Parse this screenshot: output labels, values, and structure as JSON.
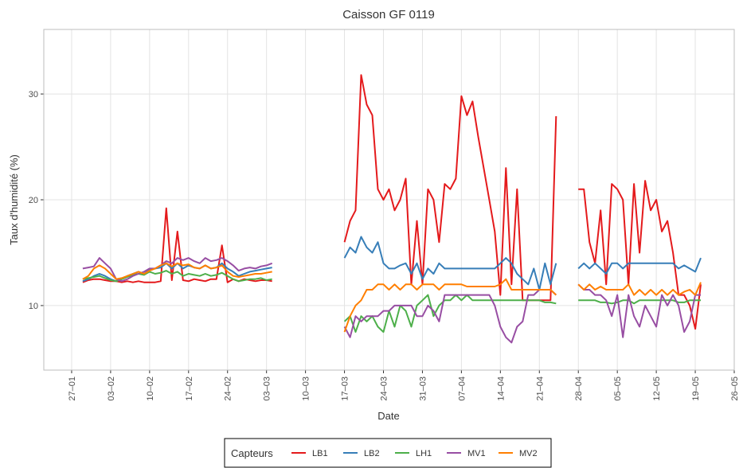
{
  "chart_data": {
    "type": "line",
    "title": "Caisson GF 0119",
    "x_label": "Date",
    "y_label": "Taux d'humidité (%)",
    "legend_title": "Capteurs",
    "legend": "bottom",
    "grid": true,
    "xlim": [
      "22–01",
      "26–05"
    ],
    "xticks": [
      "27–01",
      "03–02",
      "10–02",
      "17–02",
      "24–02",
      "03–03",
      "10–03",
      "17–03",
      "24–03",
      "31–03",
      "07–04",
      "14–04",
      "21–04",
      "28–04",
      "05–05",
      "12–05",
      "19–05",
      "26–05"
    ],
    "ylim": [
      3.9,
      36.1
    ],
    "yticks": [
      10,
      20,
      30
    ],
    "x": [
      "29–01",
      "30–01",
      "31–01",
      "01–02",
      "02–02",
      "03–02",
      "04–02",
      "05–02",
      "06–02",
      "07–02",
      "08–02",
      "09–02",
      "10–02",
      "11–02",
      "12–02",
      "13–02",
      "14–02",
      "15–02",
      "16–02",
      "17–02",
      "18–02",
      "19–02",
      "20–02",
      "21–02",
      "22–02",
      "23–02",
      "24–02",
      "25–02",
      "26–02",
      "27–02",
      "28–02",
      "01–03",
      "02–03",
      "03–03",
      "04–03",
      "05–03",
      "06–03",
      "07–03",
      "08–03",
      "09–03",
      "10–03",
      "11–03",
      "12–03",
      "13–03",
      "14–03",
      "15–03",
      "16–03",
      "17–03",
      "18–03",
      "19–03",
      "20–03",
      "21–03",
      "22–03",
      "23–03",
      "24–03",
      "25–03",
      "26–03",
      "27–03",
      "28–03",
      "29–03",
      "30–03",
      "31–03",
      "01–04",
      "02–04",
      "03–04",
      "04–04",
      "05–04",
      "06–04",
      "07–04",
      "08–04",
      "09–04",
      "10–04",
      "11–04",
      "12–04",
      "13–04",
      "14–04",
      "15–04",
      "16–04",
      "17–04",
      "18–04",
      "19–04",
      "20–04",
      "21–04",
      "22–04",
      "23–04",
      "24–04",
      "25–04",
      "26–04",
      "27–04",
      "28–04",
      "29–04",
      "30–04",
      "01–05",
      "02–05",
      "03–05",
      "04–05",
      "05–05",
      "06–05",
      "07–05",
      "08–05",
      "09–05",
      "10–05",
      "11–05",
      "12–05",
      "13–05",
      "14–05",
      "15–05",
      "16–05",
      "17–05",
      "18–05",
      "19–05",
      "20–05"
    ],
    "series": [
      {
        "name": "LB1",
        "color": "#e41a1c",
        "values": [
          12.2,
          12.4,
          12.5,
          12.5,
          12.4,
          12.3,
          12.3,
          12.2,
          12.3,
          12.2,
          12.3,
          12.2,
          12.2,
          12.2,
          12.3,
          19.2,
          12.4,
          17.0,
          12.4,
          12.3,
          12.5,
          12.4,
          12.3,
          12.5,
          12.5,
          15.7,
          12.2,
          12.5,
          12.3,
          12.5,
          12.4,
          12.3,
          12.4,
          12.4,
          12.3,
          null,
          null,
          null,
          null,
          null,
          null,
          null,
          null,
          null,
          null,
          null,
          null,
          16,
          18,
          19,
          31.8,
          29,
          28,
          21,
          20,
          21,
          19,
          20,
          22,
          12,
          18,
          12,
          21,
          20,
          16,
          21.5,
          21,
          22,
          29.8,
          28,
          29.3,
          26,
          23,
          20,
          17,
          11,
          23,
          12,
          21,
          10.5,
          10.5,
          10.5,
          10.5,
          10.5,
          10.5,
          27.9,
          null,
          null,
          null,
          21,
          21,
          16,
          14,
          19,
          12,
          21.5,
          21,
          20,
          12,
          21.5,
          15,
          21.8,
          19,
          20,
          17,
          18,
          15,
          11,
          11,
          10,
          7.8,
          12
        ]
      },
      {
        "name": "LB2",
        "color": "#377eb8",
        "values": [
          12.3,
          12.5,
          12.8,
          13,
          12.8,
          12.5,
          12.3,
          12.5,
          12.8,
          13,
          13.2,
          13,
          13.4,
          13.5,
          13.6,
          14,
          13.5,
          14,
          13.5,
          13.8,
          13.6,
          13.5,
          13.8,
          13.5,
          13.6,
          14,
          13.5,
          13.2,
          12.8,
          13,
          13.2,
          13.3,
          13.4,
          13.5,
          13.6,
          null,
          null,
          null,
          null,
          null,
          null,
          null,
          null,
          null,
          null,
          null,
          null,
          14.5,
          15.5,
          15,
          16.5,
          15.5,
          15,
          16,
          14,
          13.5,
          13.5,
          13.8,
          14,
          13,
          14,
          12.5,
          13.5,
          13,
          14,
          13.5,
          13.5,
          13.5,
          13.5,
          13.5,
          13.5,
          13.5,
          13.5,
          13.5,
          13.5,
          14,
          14.5,
          14,
          13,
          12.5,
          12,
          13.5,
          11.5,
          14,
          12,
          14,
          null,
          null,
          null,
          13.5,
          14,
          13.5,
          14,
          13.5,
          13,
          14,
          14,
          13.5,
          14,
          14,
          14,
          14,
          14,
          14,
          14,
          14,
          14,
          13.5,
          13.8,
          13.5,
          13.2,
          14.5
        ]
      },
      {
        "name": "LH1",
        "color": "#4daf4a",
        "values": [
          12.5,
          12.6,
          12.7,
          12.8,
          12.6,
          12.4,
          12.3,
          12.5,
          12.7,
          12.9,
          13,
          12.9,
          13.2,
          13,
          13.1,
          13.3,
          13,
          13.2,
          12.8,
          13,
          12.9,
          12.8,
          13,
          12.8,
          12.9,
          13.1,
          12.8,
          12.5,
          12.3,
          12.4,
          12.5,
          12.5,
          12.6,
          12.4,
          12.5,
          null,
          null,
          null,
          null,
          null,
          null,
          null,
          null,
          null,
          null,
          null,
          null,
          8.5,
          9,
          7.5,
          9,
          8.5,
          9,
          8,
          7.5,
          9.5,
          8,
          10,
          9.5,
          8,
          10,
          10.5,
          11,
          9,
          10,
          10.5,
          10.5,
          11,
          10.5,
          11,
          10.5,
          10.5,
          10.5,
          10.5,
          10.5,
          10.5,
          10.5,
          10.5,
          10.5,
          10.5,
          10.5,
          10.5,
          10.5,
          10.3,
          10.3,
          10.2,
          null,
          null,
          null,
          10.5,
          10.5,
          10.5,
          10.5,
          10.3,
          10.3,
          10.2,
          10.3,
          10.5,
          10.5,
          10.2,
          10.5,
          10.5,
          10.5,
          10.5,
          10.5,
          10.5,
          10.5,
          10.3,
          10.3,
          10.5,
          10.5,
          10.5
        ]
      },
      {
        "name": "MV1",
        "color": "#984ea3",
        "values": [
          13.5,
          13.6,
          13.7,
          14.5,
          14,
          13.5,
          12.5,
          12.3,
          12.5,
          12.8,
          13,
          13.2,
          13.5,
          13.5,
          13.8,
          14.2,
          14,
          14.5,
          14.3,
          14.5,
          14.2,
          14,
          14.5,
          14.2,
          14.3,
          14.5,
          14.2,
          13.8,
          13.3,
          13.5,
          13.6,
          13.5,
          13.7,
          13.8,
          14,
          null,
          null,
          null,
          null,
          null,
          null,
          null,
          null,
          null,
          null,
          null,
          null,
          8,
          7,
          9,
          8.5,
          9,
          9,
          9,
          9.5,
          9.5,
          10,
          10,
          10,
          10,
          9,
          9,
          10,
          9.5,
          8.5,
          11,
          11,
          11,
          11,
          11,
          11,
          11,
          11,
          11,
          10,
          8,
          7,
          6.5,
          8,
          8.5,
          11,
          11,
          11.5,
          11.5,
          11.5,
          11,
          null,
          null,
          null,
          12,
          11.5,
          11.5,
          11,
          11,
          10.5,
          9,
          11,
          7,
          11,
          9,
          8,
          10,
          9,
          8,
          11,
          10,
          11,
          10,
          7.5,
          8.5,
          11,
          11
        ]
      },
      {
        "name": "MV2",
        "color": "#ff7f00",
        "values": [
          12.5,
          12.8,
          13.5,
          13.8,
          13.5,
          13,
          12.5,
          12.6,
          12.8,
          13,
          13.2,
          13,
          13.3,
          13.5,
          13.8,
          14,
          13.7,
          14,
          13.8,
          13.9,
          13.6,
          13.5,
          13.8,
          13.5,
          13.6,
          13.8,
          13.2,
          12.8,
          12.7,
          12.8,
          12.9,
          13,
          13,
          13.1,
          13.2,
          null,
          null,
          null,
          null,
          null,
          null,
          null,
          null,
          null,
          null,
          null,
          null,
          7.5,
          9,
          10,
          10.5,
          11.5,
          11.5,
          12,
          12,
          11.5,
          12,
          11.5,
          12,
          12,
          11.5,
          12,
          12,
          12,
          11.5,
          12,
          12,
          12,
          12,
          11.8,
          11.8,
          11.8,
          11.8,
          11.8,
          11.8,
          12,
          12.5,
          11.5,
          11.5,
          11.5,
          11.5,
          11.5,
          11.5,
          11.5,
          11.5,
          11,
          null,
          null,
          null,
          12,
          11.5,
          12,
          11.5,
          11.8,
          11.5,
          11.5,
          11.5,
          11.5,
          12,
          11,
          11.5,
          11,
          11.5,
          11,
          11.5,
          11,
          11.5,
          11,
          11.3,
          11.5,
          11,
          12.2
        ]
      }
    ]
  }
}
